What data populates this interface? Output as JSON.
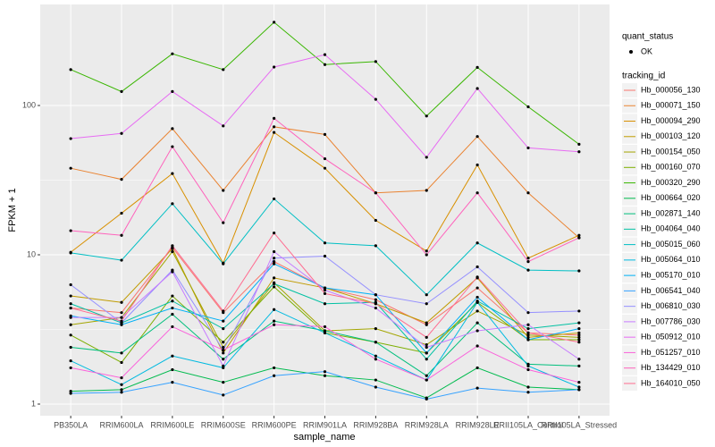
{
  "chart_data": {
    "type": "line",
    "x_label": "sample_name",
    "y_label": "FPKM + 1",
    "log_y": true,
    "grid": true,
    "categories": [
      "PB350LA",
      "RRIM600LA",
      "RRIM600LE",
      "RRIM600SE",
      "RRIM600PE",
      "RRIM901LA",
      "RRIM928BA",
      "RRIM928LA",
      "RRIM928LE",
      "RRII105LA_Control",
      "RRII105LA_Stressed"
    ],
    "ylim": [
      0.836,
      475
    ],
    "yticks": [
      1,
      10,
      100
    ],
    "legend_status_title": "quant_status",
    "legend_status_label": "OK",
    "legend_title": "tracking_id",
    "series": [
      {
        "name": "Hb_000056_130",
        "color": "#F8766D",
        "values": [
          4.4,
          4.1,
          11.2,
          4.1,
          9.0,
          6.0,
          5.0,
          3.4,
          6.0,
          3.0,
          2.9
        ]
      },
      {
        "name": "Hb_000071_150",
        "color": "#EA8331",
        "values": [
          38,
          32,
          70,
          27,
          72,
          64,
          26,
          27,
          62,
          26,
          13
        ]
      },
      {
        "name": "Hb_000094_290",
        "color": "#D89000",
        "values": [
          10.4,
          19,
          35,
          8.8,
          66,
          38,
          17,
          10.6,
          40,
          9.5,
          13.5
        ]
      },
      {
        "name": "Hb_000103_120",
        "color": "#C09B00",
        "values": [
          5.3,
          4.8,
          11,
          2.2,
          7,
          6,
          4.7,
          3.5,
          7,
          2.8,
          3
        ]
      },
      {
        "name": "Hb_000154_050",
        "color": "#A3A500",
        "values": [
          3.4,
          3.8,
          10.5,
          2.4,
          6.5,
          3.1,
          3.2,
          2.5,
          4.2,
          2.9,
          2.8
        ]
      },
      {
        "name": "Hb_000160_070",
        "color": "#7CAE00",
        "values": [
          2.9,
          1.9,
          5.3,
          2.6,
          6.1,
          3.0,
          2.6,
          2.2,
          4.8,
          2.7,
          2.7
        ]
      },
      {
        "name": "Hb_000320_290",
        "color": "#39B600",
        "values": [
          174,
          124,
          222,
          174,
          361,
          188,
          197,
          85,
          180,
          98,
          55
        ]
      },
      {
        "name": "Hb_000664_020",
        "color": "#00BB4E",
        "values": [
          1.22,
          1.25,
          1.7,
          1.4,
          1.75,
          1.55,
          1.45,
          1.1,
          1.75,
          1.3,
          1.25
        ]
      },
      {
        "name": "Hb_002871_140",
        "color": "#00BF7D",
        "values": [
          2.4,
          2.2,
          4.0,
          2.0,
          3.6,
          3.1,
          2.6,
          1.55,
          3.5,
          1.85,
          1.8
        ]
      },
      {
        "name": "Hb_004064_040",
        "color": "#00C1A3",
        "values": [
          4.7,
          3.5,
          4.9,
          3.2,
          6.4,
          4.7,
          4.8,
          2.0,
          4.9,
          3.2,
          3.5
        ]
      },
      {
        "name": "Hb_005015_060",
        "color": "#00BFC4",
        "values": [
          10.3,
          9.2,
          22,
          8.7,
          23.7,
          12,
          11.5,
          5.4,
          12,
          7.9,
          7.8
        ]
      },
      {
        "name": "Hb_005064_010",
        "color": "#00BAE0",
        "values": [
          1.95,
          1.35,
          2.1,
          1.75,
          4.3,
          3.0,
          2.1,
          1.45,
          4.8,
          1.8,
          1.3
        ]
      },
      {
        "name": "Hb_005170_010",
        "color": "#00B0F6",
        "values": [
          3.9,
          3.4,
          4.4,
          3.6,
          8.7,
          6.0,
          5.4,
          2.2,
          5.2,
          2.7,
          3.2
        ]
      },
      {
        "name": "Hb_006541_040",
        "color": "#35A2FF",
        "values": [
          1.18,
          1.2,
          1.4,
          1.15,
          1.55,
          1.65,
          1.3,
          1.08,
          1.28,
          1.2,
          1.25
        ]
      },
      {
        "name": "Hb_006810_030",
        "color": "#9590FF",
        "values": [
          6.3,
          3.5,
          7.9,
          2.3,
          9.5,
          9.8,
          5.4,
          4.7,
          8.3,
          4.1,
          4.2
        ]
      },
      {
        "name": "Hb_007786_030",
        "color": "#C77CFF",
        "values": [
          3.8,
          3.8,
          7.7,
          1.8,
          10.5,
          5.8,
          4.4,
          2.4,
          3.1,
          3.4,
          2.0
        ]
      },
      {
        "name": "Hb_050912_010",
        "color": "#E76BF3",
        "values": [
          60,
          65,
          124,
          73,
          181,
          219,
          110,
          45,
          130,
          52,
          49
        ]
      },
      {
        "name": "Hb_051257_010",
        "color": "#FA62DB",
        "values": [
          1.75,
          1.5,
          3.3,
          2.3,
          3.4,
          3.3,
          2.0,
          1.45,
          2.45,
          1.7,
          1.4
        ]
      },
      {
        "name": "Hb_134429_010",
        "color": "#FF62BC",
        "values": [
          14.5,
          13.5,
          53,
          16.4,
          82,
          44,
          26,
          10,
          26,
          9,
          13
        ]
      },
      {
        "name": "Hb_164010_050",
        "color": "#FF6C90",
        "values": [
          4.4,
          3.6,
          11.5,
          4.2,
          14,
          5.5,
          4.7,
          2.8,
          7.1,
          3.0,
          2.6
        ]
      }
    ]
  }
}
